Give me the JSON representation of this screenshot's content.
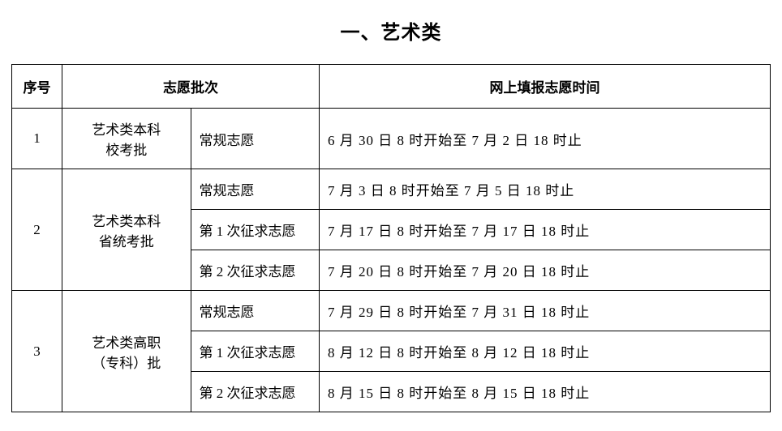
{
  "title": "一、艺术类",
  "headers": {
    "seq": "序号",
    "batch": "志愿批次",
    "time": "网上填报志愿时间"
  },
  "rows": [
    {
      "seq": "1",
      "batch_main": "艺术类本科\n校考批",
      "subs": [
        {
          "label": "常规志愿",
          "time": "6 月 30 日 8 时开始至 7 月 2 日 18 时止"
        }
      ]
    },
    {
      "seq": "2",
      "batch_main": "艺术类本科\n省统考批",
      "subs": [
        {
          "label": "常规志愿",
          "time": "7 月 3 日 8 时开始至 7 月 5 日 18 时止"
        },
        {
          "label": "第 1 次征求志愿",
          "time": "7 月 17 日 8 时开始至 7 月 17 日 18 时止"
        },
        {
          "label": "第 2 次征求志愿",
          "time": "7 月 20 日 8 时开始至 7 月 20 日 18 时止"
        }
      ]
    },
    {
      "seq": "3",
      "batch_main": "艺术类高职\n（专科）批",
      "subs": [
        {
          "label": "常规志愿",
          "time": "7 月 29 日 8 时开始至 7 月 31 日 18 时止"
        },
        {
          "label": "第 1 次征求志愿",
          "time": "8 月 12 日 8 时开始至 8 月 12 日 18 时止"
        },
        {
          "label": "第 2 次征求志愿",
          "time": "8 月 15 日 8 时开始至 8 月 15 日 18 时止"
        }
      ]
    }
  ]
}
